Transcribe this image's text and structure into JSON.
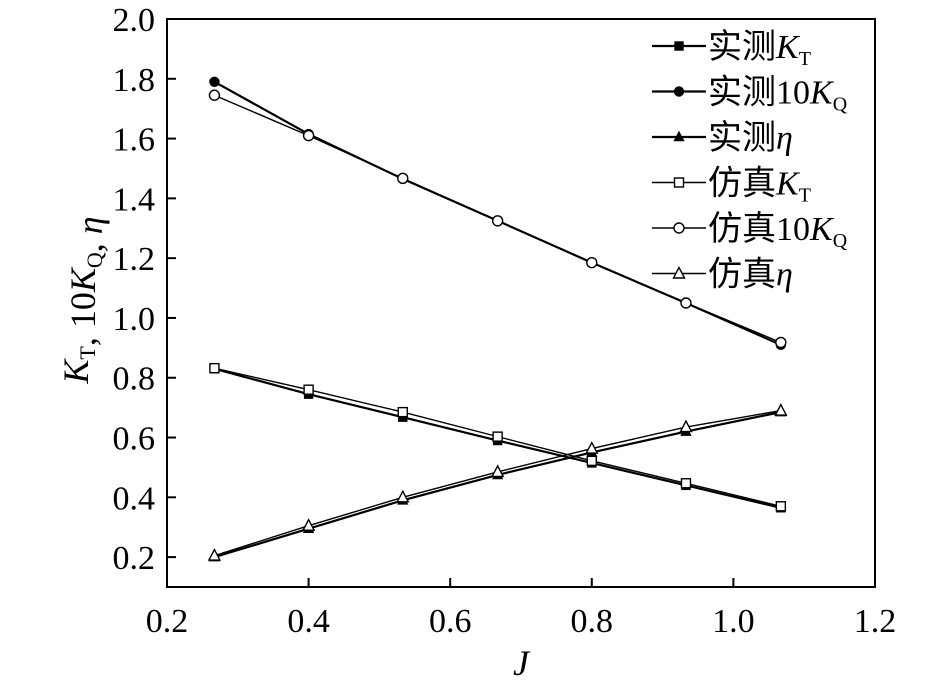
{
  "chart_data": {
    "type": "line",
    "xlabel": "J",
    "ylabel": "K_T, 10K_Q, η",
    "xlim": [
      0.2,
      1.2
    ],
    "ylim": [
      0.1,
      2.0
    ],
    "x_ticks": [
      "0.2",
      "0.4",
      "0.6",
      "0.8",
      "1.0",
      "1.2"
    ],
    "y_ticks": [
      "0.2",
      "0.4",
      "0.6",
      "0.8",
      "1.0",
      "1.2",
      "1.4",
      "1.6",
      "1.8",
      "2.0"
    ],
    "x": [
      0.267,
      0.4,
      0.533,
      0.667,
      0.8,
      0.933,
      1.067
    ],
    "grid": false,
    "legend_position": "top-right",
    "series": [
      {
        "name": "实测K_T",
        "prefix": "实测",
        "symbol": "K",
        "sub": "T",
        "marker": "square",
        "filled": true,
        "values": [
          0.83,
          0.745,
          0.668,
          0.59,
          0.515,
          0.44,
          0.365
        ]
      },
      {
        "name": "实测10K_Q",
        "prefix": "实测10",
        "symbol": "K",
        "sub": "Q",
        "marker": "circle",
        "filled": true,
        "values": [
          1.79,
          1.615,
          1.465,
          1.325,
          1.185,
          1.05,
          0.91
        ]
      },
      {
        "name": "实测η",
        "prefix": "实测",
        "symbol": "η",
        "sub": "",
        "marker": "triangle",
        "filled": true,
        "values": [
          0.2,
          0.295,
          0.39,
          0.475,
          0.55,
          0.62,
          0.685
        ]
      },
      {
        "name": "仿真K_T",
        "prefix": "仿真",
        "symbol": "K",
        "sub": "T",
        "marker": "square",
        "filled": false,
        "values": [
          0.832,
          0.76,
          0.685,
          0.603,
          0.522,
          0.447,
          0.37
        ]
      },
      {
        "name": "仿真10K_Q",
        "prefix": "仿真10",
        "symbol": "K",
        "sub": "Q",
        "marker": "circle",
        "filled": false,
        "values": [
          1.745,
          1.61,
          1.467,
          1.325,
          1.185,
          1.05,
          0.918
        ]
      },
      {
        "name": "仿真η",
        "prefix": "仿真",
        "symbol": "η",
        "sub": "",
        "marker": "triangle",
        "filled": false,
        "values": [
          0.205,
          0.305,
          0.4,
          0.485,
          0.563,
          0.635,
          0.69
        ]
      }
    ]
  }
}
